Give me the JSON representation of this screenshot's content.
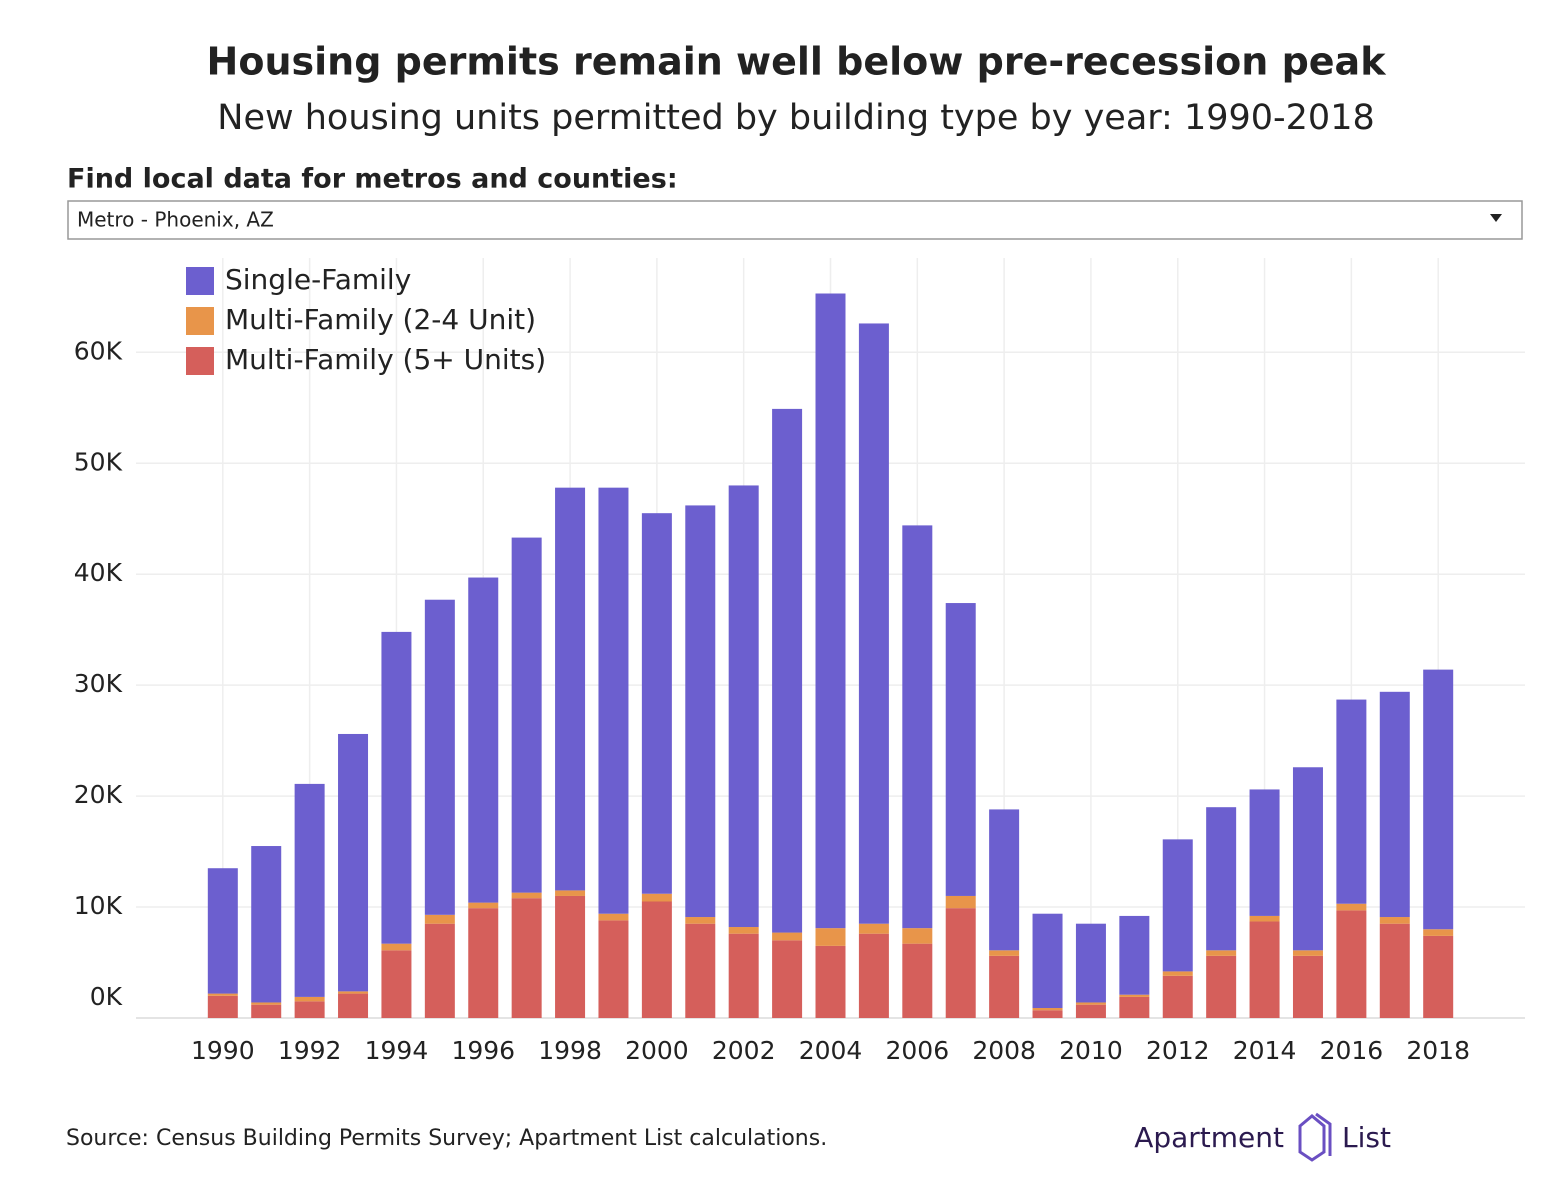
{
  "chart_data": {
    "type": "stacked_bar",
    "title": "Housing permits remain well below pre-recession peak",
    "subtitle": "New housing units permitted by building type by year: 1990-2018",
    "x": [
      1990,
      1991,
      1992,
      1993,
      1994,
      1995,
      1996,
      1997,
      1998,
      1999,
      2000,
      2001,
      2002,
      2003,
      2004,
      2005,
      2006,
      2007,
      2008,
      2009,
      2010,
      2011,
      2012,
      2013,
      2014,
      2015,
      2016,
      2017,
      2018
    ],
    "xlim": [
      1988,
      2020
    ],
    "xticks": [
      1990,
      1992,
      1994,
      1996,
      1998,
      2000,
      2002,
      2004,
      2006,
      2008,
      2010,
      2012,
      2014,
      2016,
      2018
    ],
    "ylim": [
      0,
      68500
    ],
    "yticks": [
      {
        "value": 0,
        "label": "0K"
      },
      {
        "value": 10000,
        "label": "10K"
      },
      {
        "value": 20000,
        "label": "20K"
      },
      {
        "value": 30000,
        "label": "30K"
      },
      {
        "value": 40000,
        "label": "40K"
      },
      {
        "value": 50000,
        "label": "50K"
      },
      {
        "value": 60000,
        "label": "60K"
      }
    ],
    "grid": true,
    "legend": "top-left",
    "series": [
      {
        "name": "Single-Family",
        "color": "#6c5fcf",
        "values": [
          11300,
          14100,
          19200,
          23200,
          28100,
          28400,
          29300,
          32000,
          36300,
          38400,
          34300,
          37100,
          39800,
          47200,
          57200,
          54100,
          36300,
          26400,
          12700,
          8500,
          7100,
          7100,
          11900,
          12900,
          11400,
          16500,
          18400,
          20300,
          23400
        ]
      },
      {
        "name": "Multi-Family (2-4 Unit)",
        "color": "#e8954a",
        "values": [
          200,
          200,
          400,
          200,
          600,
          800,
          500,
          500,
          500,
          600,
          700,
          600,
          600,
          700,
          1600,
          900,
          1400,
          1100,
          500,
          200,
          200,
          200,
          400,
          500,
          500,
          500,
          600,
          600,
          600
        ]
      },
      {
        "name": "Multi-Family (5+ Units)",
        "color": "#d55f5b",
        "values": [
          2000,
          1200,
          1500,
          2200,
          6100,
          8500,
          9900,
          10800,
          11000,
          8800,
          10500,
          8500,
          7600,
          7000,
          6500,
          7600,
          6700,
          9900,
          5600,
          700,
          1200,
          1900,
          3800,
          5600,
          8700,
          5600,
          9700,
          8500,
          7400
        ]
      }
    ]
  },
  "filter": {
    "label": "Find local data for metros and counties:",
    "value": "Metro - Phoenix, AZ"
  },
  "source": "Source: Census Building Permits Survey; Apartment List calculations.",
  "brand": {
    "left": "Apartment",
    "right": "List"
  }
}
